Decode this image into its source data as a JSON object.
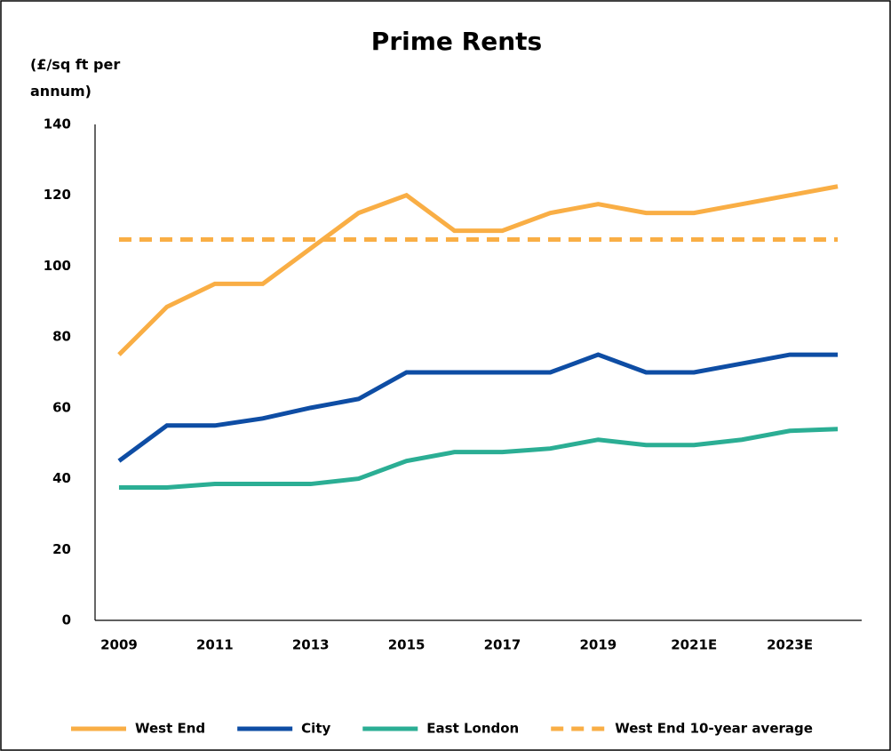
{
  "chart_data": {
    "type": "line",
    "title": "Prime Rents",
    "y_label": "(£/sq ft per annum)",
    "categories": [
      "2009",
      null,
      "2011",
      null,
      "2013",
      null,
      "2015",
      null,
      "2017",
      null,
      "2019",
      null,
      "2021E",
      null,
      "2023E",
      null
    ],
    "series": [
      {
        "name": "West End",
        "color": "#f9ae45",
        "dashed": false,
        "values": [
          75,
          88.5,
          95,
          95,
          105,
          115,
          120,
          110,
          110,
          115,
          117.5,
          115,
          115,
          117.5,
          120,
          122.5
        ]
      },
      {
        "name": "City",
        "color": "#0e4da4",
        "dashed": false,
        "values": [
          45,
          55,
          55,
          57,
          60,
          62.5,
          70,
          70,
          70,
          70,
          75,
          70,
          70,
          72.5,
          75,
          75
        ]
      },
      {
        "name": "East London",
        "color": "#2bae94",
        "dashed": false,
        "values": [
          37.5,
          37.5,
          38.5,
          38.5,
          38.5,
          40,
          45,
          47.5,
          47.5,
          48.5,
          51,
          49.5,
          49.5,
          51,
          53.5,
          54
        ]
      },
      {
        "name": "West End 10-year average",
        "color": "#f9ae45",
        "dashed": true,
        "values": [
          107.5,
          107.5,
          107.5,
          107.5,
          107.5,
          107.5,
          107.5,
          107.5,
          107.5,
          107.5,
          107.5,
          107.5,
          107.5,
          107.5,
          107.5,
          107.5
        ]
      }
    ],
    "ylim": [
      0,
      140
    ],
    "yticks": [
      0,
      20,
      40,
      60,
      80,
      100,
      120,
      140
    ],
    "grid": false,
    "legend": "bottom"
  }
}
